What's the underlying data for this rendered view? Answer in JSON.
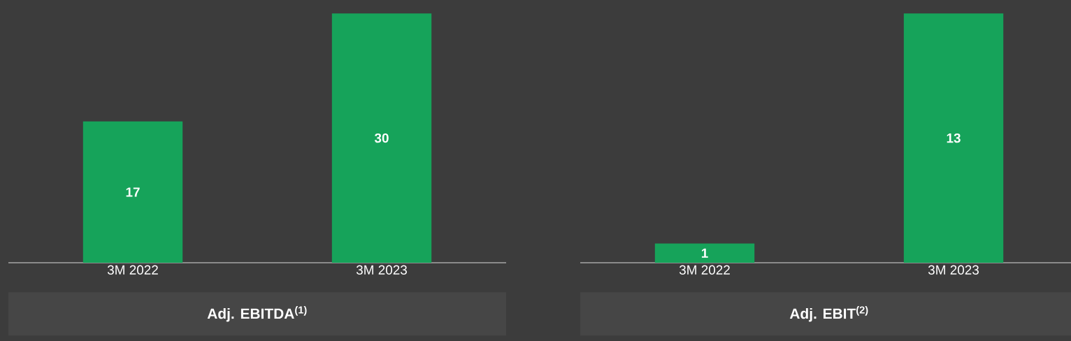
{
  "chart_data": [
    {
      "type": "bar",
      "title": "Adj. EBITDA$^{(1)}$",
      "categories": [
        "3M 2022",
        "3M 2023"
      ],
      "values": [
        17,
        30
      ],
      "color": "#16a35a",
      "data_labels": true
    },
    {
      "type": "bar",
      "title": "Adj. EBIT$^{(2)}$",
      "categories": [
        "3M 2022",
        "3M 2023"
      ],
      "values": [
        1,
        13
      ],
      "color": "#16a35a",
      "data_labels": true
    }
  ]
}
